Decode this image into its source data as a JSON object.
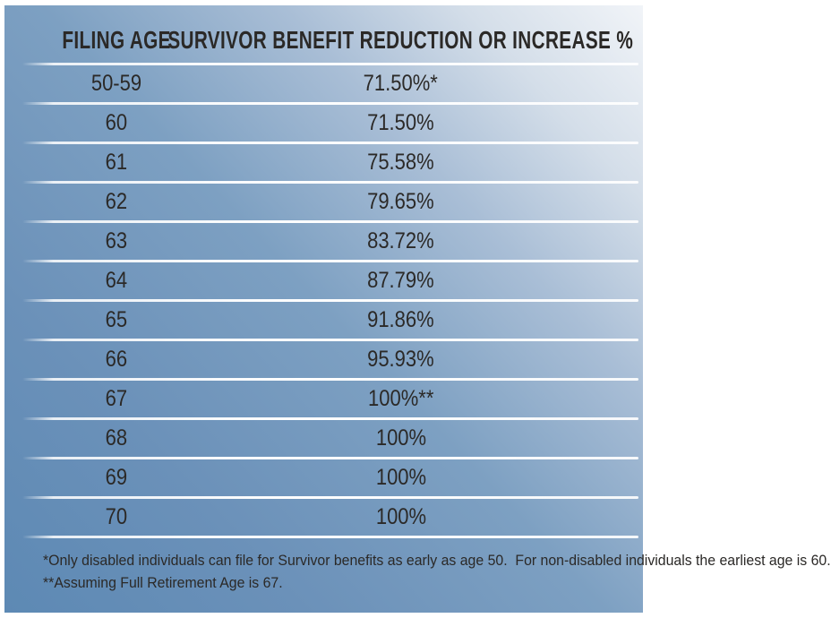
{
  "chart_data": {
    "type": "table",
    "columns": [
      "FILING AGE",
      "SURVIVOR BENEFIT REDUCTION OR INCREASE %"
    ],
    "rows": [
      {
        "filing_age": "50-59",
        "benefit_pct": "71.50%*"
      },
      {
        "filing_age": "60",
        "benefit_pct": "71.50%"
      },
      {
        "filing_age": "61",
        "benefit_pct": "75.58%"
      },
      {
        "filing_age": "62",
        "benefit_pct": "79.65%"
      },
      {
        "filing_age": "63",
        "benefit_pct": "83.72%"
      },
      {
        "filing_age": "64",
        "benefit_pct": "87.79%"
      },
      {
        "filing_age": "65",
        "benefit_pct": "91.86%"
      },
      {
        "filing_age": "66",
        "benefit_pct": "95.93%"
      },
      {
        "filing_age": "67",
        "benefit_pct": "100%**"
      },
      {
        "filing_age": "68",
        "benefit_pct": "100%"
      },
      {
        "filing_age": "69",
        "benefit_pct": "100%"
      },
      {
        "filing_age": "70",
        "benefit_pct": "100%"
      }
    ],
    "footnotes": [
      "*Only disabled individuals can file for Survivor benefits as early as age 50.  For non-disabled individuals the earliest age is 60.",
      "**Assuming Full Retirement Age is 67."
    ],
    "legend_position": "none",
    "grid": "horizontal-white-separators"
  },
  "colors": {
    "gradient_start": "#5d89b4",
    "gradient_mid": "#7da0c2",
    "gradient_end": "#f1f4f8",
    "separator": "#ffffff",
    "text": "#2b2927",
    "page_margin": "#ffffff"
  }
}
